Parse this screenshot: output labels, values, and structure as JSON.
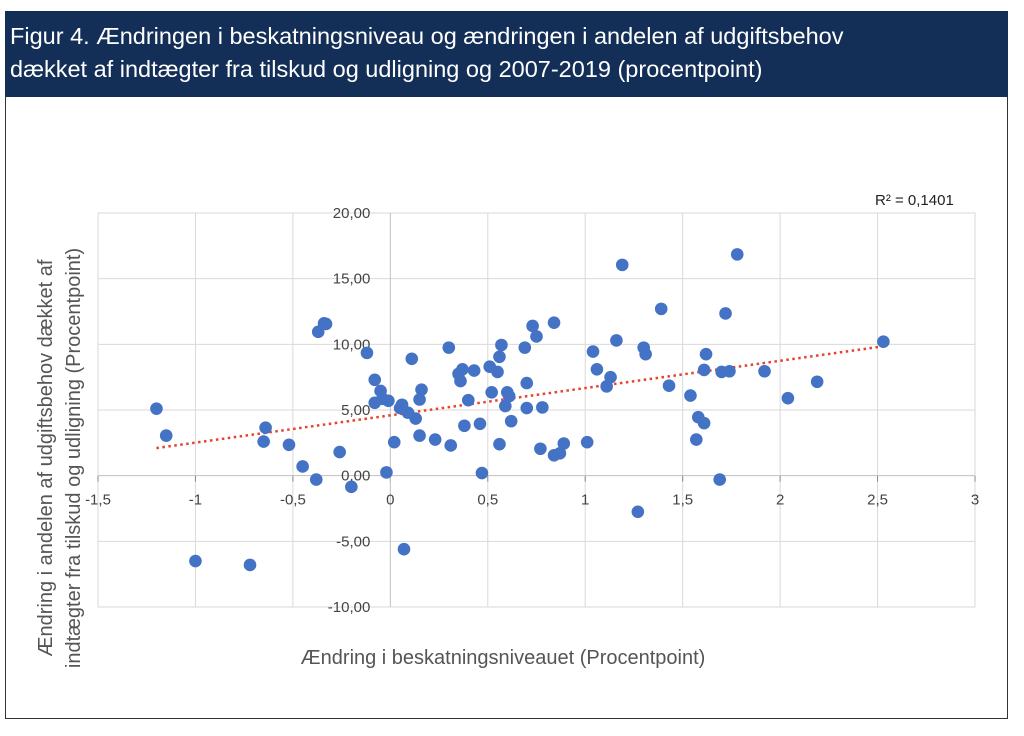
{
  "header": {
    "title_line1": "Figur 4. Ændringen i beskatningsniveau og ændringen i andelen af udgiftsbehov",
    "title_line2": "dækket af indtægter fra tilskud og udligning og 2007-2019 (procentpoint)"
  },
  "colors": {
    "header_bg": "#132f57",
    "point": "#4472c4",
    "trend": "#e8412c",
    "grid": "#d9d9d9"
  },
  "chart_data": {
    "type": "scatter",
    "xlabel": "Ændring i beskatningsniveauet (Procentpoint)",
    "ylabel_line1": "Ændring i andelen af udgiftsbehov dækket af",
    "ylabel_line2": "indtægter fra tilskud og udligning (Procentpoint)",
    "xlim": [
      -1.5,
      3
    ],
    "ylim": [
      -10,
      20
    ],
    "x_ticks": [
      -1.5,
      -1,
      -0.5,
      0,
      0.5,
      1,
      1.5,
      2,
      2.5,
      3
    ],
    "x_tick_labels": [
      "-1,5",
      "-1",
      "-0,5",
      "0",
      "0,5",
      "1",
      "1,5",
      "2",
      "2,5",
      "3"
    ],
    "y_ticks": [
      20,
      15,
      10,
      5,
      0,
      -5,
      -10
    ],
    "y_tick_labels": [
      "20,00",
      "15,00",
      "10,00",
      "5,00",
      "0,00",
      "-5,00",
      "-10,00"
    ],
    "r_squared_label": "R² = 0,1401",
    "trendline": {
      "x": [
        -1.2,
        2.53
      ],
      "y": [
        2.1,
        9.85
      ]
    },
    "points": [
      [
        -1.2,
        5.1
      ],
      [
        -1.15,
        3.05
      ],
      [
        -1.0,
        -6.5
      ],
      [
        -0.72,
        -6.8
      ],
      [
        -0.65,
        2.6
      ],
      [
        -0.64,
        3.65
      ],
      [
        -0.52,
        2.35
      ],
      [
        -0.45,
        0.7
      ],
      [
        -0.38,
        -0.3
      ],
      [
        -0.37,
        10.95
      ],
      [
        -0.34,
        11.6
      ],
      [
        -0.33,
        11.55
      ],
      [
        -0.26,
        1.8
      ],
      [
        -0.2,
        -0.85
      ],
      [
        -0.12,
        9.35
      ],
      [
        -0.08,
        7.3
      ],
      [
        -0.08,
        5.55
      ],
      [
        -0.05,
        6.45
      ],
      [
        -0.04,
        5.85
      ],
      [
        -0.02,
        0.25
      ],
      [
        -0.01,
        5.7
      ],
      [
        0.02,
        2.55
      ],
      [
        0.05,
        5.15
      ],
      [
        0.06,
        5.4
      ],
      [
        0.07,
        -5.6
      ],
      [
        0.09,
        4.8
      ],
      [
        0.11,
        8.9
      ],
      [
        0.13,
        4.35
      ],
      [
        0.15,
        3.05
      ],
      [
        0.15,
        5.8
      ],
      [
        0.16,
        6.55
      ],
      [
        0.23,
        2.75
      ],
      [
        0.3,
        9.75
      ],
      [
        0.31,
        2.3
      ],
      [
        0.35,
        7.75
      ],
      [
        0.36,
        7.2
      ],
      [
        0.37,
        8.1
      ],
      [
        0.38,
        3.8
      ],
      [
        0.4,
        5.75
      ],
      [
        0.43,
        8.0
      ],
      [
        0.46,
        3.95
      ],
      [
        0.47,
        0.2
      ],
      [
        0.51,
        8.3
      ],
      [
        0.52,
        6.35
      ],
      [
        0.55,
        7.9
      ],
      [
        0.56,
        9.05
      ],
      [
        0.56,
        2.4
      ],
      [
        0.57,
        9.95
      ],
      [
        0.59,
        5.3
      ],
      [
        0.6,
        6.35
      ],
      [
        0.61,
        6.05
      ],
      [
        0.62,
        4.15
      ],
      [
        0.69,
        9.75
      ],
      [
        0.7,
        7.05
      ],
      [
        0.7,
        5.15
      ],
      [
        0.73,
        11.4
      ],
      [
        0.75,
        10.6
      ],
      [
        0.77,
        2.05
      ],
      [
        0.78,
        5.2
      ],
      [
        0.84,
        11.65
      ],
      [
        0.84,
        1.55
      ],
      [
        0.87,
        1.7
      ],
      [
        0.89,
        2.45
      ],
      [
        1.01,
        2.55
      ],
      [
        1.04,
        9.45
      ],
      [
        1.06,
        8.1
      ],
      [
        1.11,
        6.8
      ],
      [
        1.13,
        7.5
      ],
      [
        1.16,
        10.3
      ],
      [
        1.19,
        16.05
      ],
      [
        1.27,
        -2.75
      ],
      [
        1.3,
        9.75
      ],
      [
        1.31,
        9.25
      ],
      [
        1.39,
        12.7
      ],
      [
        1.43,
        6.85
      ],
      [
        1.54,
        6.1
      ],
      [
        1.57,
        2.75
      ],
      [
        1.58,
        4.45
      ],
      [
        1.61,
        8.05
      ],
      [
        1.61,
        4.0
      ],
      [
        1.62,
        9.25
      ],
      [
        1.69,
        -0.3
      ],
      [
        1.7,
        7.9
      ],
      [
        1.72,
        12.35
      ],
      [
        1.74,
        7.95
      ],
      [
        1.78,
        16.85
      ],
      [
        1.92,
        7.95
      ],
      [
        2.04,
        5.9
      ],
      [
        2.19,
        7.15
      ],
      [
        2.53,
        10.2
      ]
    ]
  }
}
